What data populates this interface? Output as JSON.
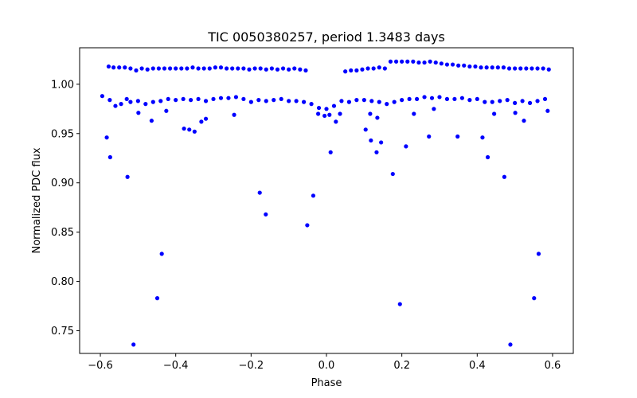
{
  "chart_data": {
    "type": "scatter",
    "title": "TIC 0050380257, period 1.3483 days",
    "xlabel": "Phase",
    "ylabel": "Normalized PDC flux",
    "xlim": [
      -0.655,
      0.655
    ],
    "ylim": [
      0.727,
      1.037
    ],
    "xticks": [
      -0.6,
      -0.4,
      -0.2,
      0.0,
      0.2,
      0.4,
      0.6
    ],
    "xtick_labels": [
      "−0.6",
      "−0.4",
      "−0.2",
      "0.0",
      "0.2",
      "0.4",
      "0.6"
    ],
    "yticks": [
      0.75,
      0.8,
      0.85,
      0.9,
      0.95,
      1.0
    ],
    "ytick_labels": [
      "0.75",
      "0.80",
      "0.85",
      "0.90",
      "0.95",
      "1.00"
    ],
    "grid": false,
    "marker_color": "#0000ff",
    "series": [
      {
        "points": [
          [
            -0.578,
            1.018
          ],
          [
            -0.565,
            1.017
          ],
          [
            -0.55,
            1.017
          ],
          [
            -0.535,
            1.017
          ],
          [
            -0.52,
            1.016
          ],
          [
            -0.505,
            1.014
          ],
          [
            -0.49,
            1.016
          ],
          [
            -0.475,
            1.015
          ],
          [
            -0.46,
            1.016
          ],
          [
            -0.445,
            1.016
          ],
          [
            -0.43,
            1.016
          ],
          [
            -0.415,
            1.016
          ],
          [
            -0.4,
            1.016
          ],
          [
            -0.385,
            1.016
          ],
          [
            -0.37,
            1.016
          ],
          [
            -0.355,
            1.017
          ],
          [
            -0.34,
            1.016
          ],
          [
            -0.325,
            1.016
          ],
          [
            -0.31,
            1.016
          ],
          [
            -0.295,
            1.017
          ],
          [
            -0.28,
            1.017
          ],
          [
            -0.265,
            1.016
          ],
          [
            -0.25,
            1.016
          ],
          [
            -0.235,
            1.016
          ],
          [
            -0.22,
            1.016
          ],
          [
            -0.205,
            1.015
          ],
          [
            -0.19,
            1.016
          ],
          [
            -0.175,
            1.016
          ],
          [
            -0.16,
            1.015
          ],
          [
            -0.145,
            1.016
          ],
          [
            -0.13,
            1.015
          ],
          [
            -0.115,
            1.016
          ],
          [
            -0.1,
            1.015
          ],
          [
            -0.085,
            1.016
          ],
          [
            -0.07,
            1.015
          ],
          [
            -0.055,
            1.014
          ],
          [
            0.05,
            1.013
          ],
          [
            0.065,
            1.014
          ],
          [
            0.08,
            1.014
          ],
          [
            0.095,
            1.015
          ],
          [
            0.11,
            1.016
          ],
          [
            0.125,
            1.016
          ],
          [
            0.14,
            1.017
          ],
          [
            0.155,
            1.016
          ],
          [
            0.17,
            1.023
          ],
          [
            0.185,
            1.023
          ],
          [
            0.2,
            1.023
          ],
          [
            0.215,
            1.023
          ],
          [
            0.23,
            1.023
          ],
          [
            0.245,
            1.022
          ],
          [
            0.26,
            1.022
          ],
          [
            0.275,
            1.023
          ],
          [
            0.29,
            1.022
          ],
          [
            0.305,
            1.021
          ],
          [
            0.32,
            1.02
          ],
          [
            0.335,
            1.02
          ],
          [
            0.35,
            1.019
          ],
          [
            0.365,
            1.019
          ],
          [
            0.38,
            1.018
          ],
          [
            0.395,
            1.018
          ],
          [
            0.41,
            1.017
          ],
          [
            0.425,
            1.017
          ],
          [
            0.44,
            1.017
          ],
          [
            0.455,
            1.017
          ],
          [
            0.47,
            1.017
          ],
          [
            0.485,
            1.016
          ],
          [
            0.5,
            1.016
          ],
          [
            0.515,
            1.016
          ],
          [
            0.53,
            1.016
          ],
          [
            0.545,
            1.016
          ],
          [
            0.56,
            1.016
          ],
          [
            0.575,
            1.016
          ],
          [
            0.59,
            1.015
          ],
          [
            -0.595,
            0.988
          ],
          [
            -0.575,
            0.984
          ],
          [
            -0.56,
            0.978
          ],
          [
            -0.545,
            0.98
          ],
          [
            -0.53,
            0.985
          ],
          [
            -0.52,
            0.982
          ],
          [
            -0.5,
            0.983
          ],
          [
            -0.48,
            0.98
          ],
          [
            -0.46,
            0.982
          ],
          [
            -0.44,
            0.983
          ],
          [
            -0.42,
            0.985
          ],
          [
            -0.4,
            0.984
          ],
          [
            -0.38,
            0.985
          ],
          [
            -0.36,
            0.984
          ],
          [
            -0.34,
            0.985
          ],
          [
            -0.32,
            0.983
          ],
          [
            -0.3,
            0.985
          ],
          [
            -0.28,
            0.986
          ],
          [
            -0.26,
            0.986
          ],
          [
            -0.24,
            0.987
          ],
          [
            -0.22,
            0.985
          ],
          [
            -0.2,
            0.982
          ],
          [
            -0.18,
            0.984
          ],
          [
            -0.16,
            0.983
          ],
          [
            -0.14,
            0.984
          ],
          [
            -0.12,
            0.985
          ],
          [
            -0.1,
            0.983
          ],
          [
            -0.08,
            0.983
          ],
          [
            -0.06,
            0.982
          ],
          [
            -0.04,
            0.98
          ],
          [
            -0.02,
            0.976
          ],
          [
            0.0,
            0.975
          ],
          [
            0.02,
            0.978
          ],
          [
            0.04,
            0.983
          ],
          [
            0.06,
            0.982
          ],
          [
            0.08,
            0.984
          ],
          [
            0.1,
            0.984
          ],
          [
            0.12,
            0.983
          ],
          [
            0.14,
            0.982
          ],
          [
            0.16,
            0.98
          ],
          [
            0.18,
            0.982
          ],
          [
            0.2,
            0.984
          ],
          [
            0.22,
            0.985
          ],
          [
            0.24,
            0.985
          ],
          [
            0.26,
            0.987
          ],
          [
            0.28,
            0.986
          ],
          [
            0.3,
            0.987
          ],
          [
            0.32,
            0.985
          ],
          [
            0.34,
            0.985
          ],
          [
            0.36,
            0.986
          ],
          [
            0.38,
            0.984
          ],
          [
            0.4,
            0.985
          ],
          [
            0.42,
            0.982
          ],
          [
            0.44,
            0.982
          ],
          [
            0.46,
            0.983
          ],
          [
            0.48,
            0.984
          ],
          [
            0.5,
            0.981
          ],
          [
            0.52,
            0.983
          ],
          [
            0.54,
            0.981
          ],
          [
            0.56,
            0.983
          ],
          [
            0.58,
            0.985
          ],
          [
            -0.022,
            0.97
          ],
          [
            -0.005,
            0.968
          ],
          [
            0.008,
            0.969
          ],
          [
            0.025,
            0.962
          ],
          [
            0.036,
            0.97
          ],
          [
            0.116,
            0.97
          ],
          [
            0.135,
            0.966
          ],
          [
            0.232,
            0.97
          ],
          [
            0.285,
            0.975
          ],
          [
            0.445,
            0.97
          ],
          [
            -0.245,
            0.969
          ],
          [
            0.587,
            0.973
          ],
          [
            -0.583,
            0.946
          ],
          [
            -0.574,
            0.926
          ],
          [
            -0.528,
            0.906
          ],
          [
            -0.512,
            0.736
          ],
          [
            -0.499,
            0.971
          ],
          [
            -0.464,
            0.963
          ],
          [
            -0.449,
            0.783
          ],
          [
            -0.437,
            0.828
          ],
          [
            -0.425,
            0.973
          ],
          [
            -0.378,
            0.955
          ],
          [
            -0.364,
            0.954
          ],
          [
            -0.35,
            0.952
          ],
          [
            -0.332,
            0.962
          ],
          [
            -0.32,
            0.965
          ],
          [
            -0.177,
            0.89
          ],
          [
            -0.161,
            0.868
          ],
          [
            -0.051,
            0.857
          ],
          [
            -0.035,
            0.887
          ],
          [
            0.011,
            0.931
          ],
          [
            0.104,
            0.954
          ],
          [
            0.118,
            0.943
          ],
          [
            0.133,
            0.931
          ],
          [
            0.145,
            0.941
          ],
          [
            0.176,
            0.909
          ],
          [
            0.195,
            0.777
          ],
          [
            0.211,
            0.937
          ],
          [
            0.272,
            0.947
          ],
          [
            0.348,
            0.947
          ],
          [
            0.414,
            0.946
          ],
          [
            0.428,
            0.926
          ],
          [
            0.472,
            0.906
          ],
          [
            0.488,
            0.736
          ],
          [
            0.501,
            0.971
          ],
          [
            0.524,
            0.963
          ],
          [
            0.551,
            0.783
          ],
          [
            0.563,
            0.828
          ]
        ]
      }
    ]
  }
}
